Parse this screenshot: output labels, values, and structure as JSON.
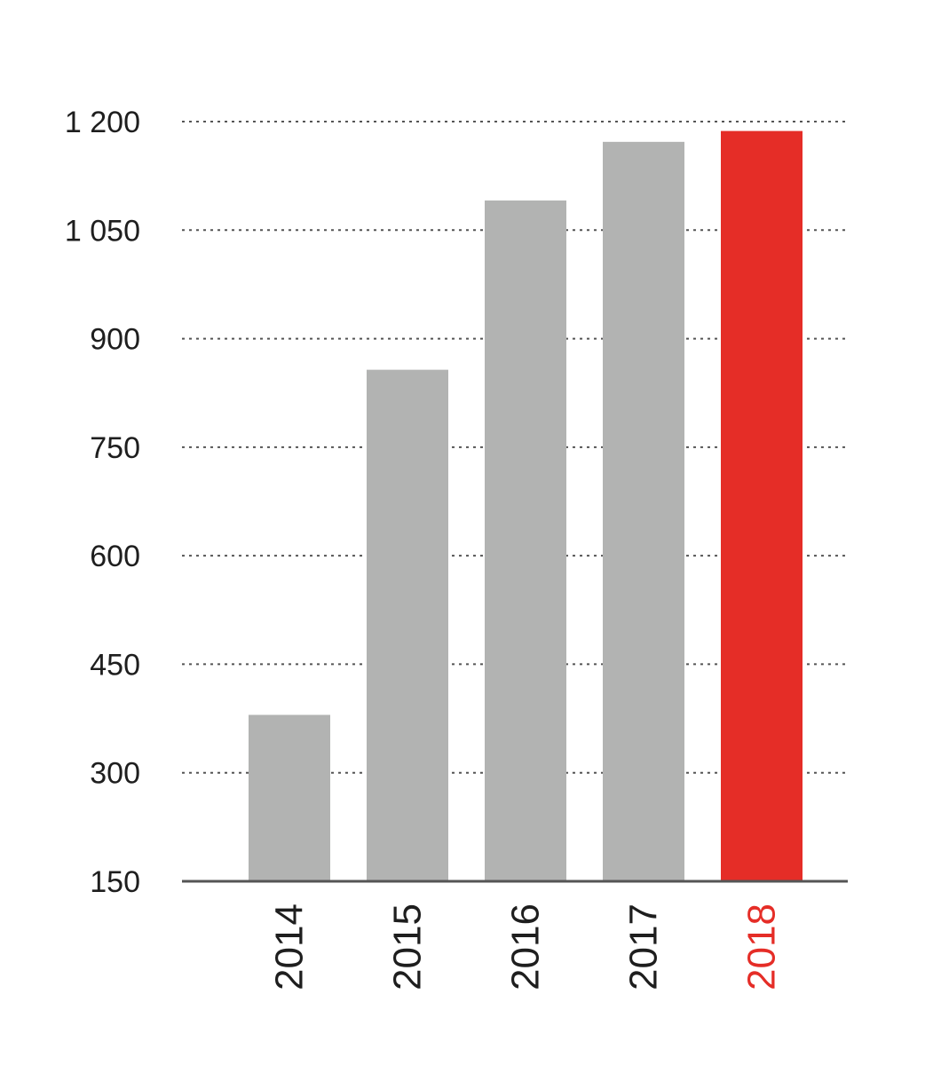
{
  "chart_data": {
    "type": "bar",
    "categories": [
      "2014",
      "2015",
      "2016",
      "2017",
      "2018"
    ],
    "values": [
      380,
      857,
      1091,
      1172,
      1187
    ],
    "ylim": [
      150,
      1200
    ],
    "yticks": [
      150,
      300,
      450,
      600,
      750,
      900,
      1050,
      1200
    ],
    "ytick_labels": [
      "150",
      "300",
      "450",
      "600",
      "750",
      "900",
      "1 050",
      "1 200"
    ],
    "grid": true,
    "grid_style": "dotted",
    "title": "",
    "xlabel": "",
    "ylabel": "",
    "colors": {
      "default_bar": "#b2b3b2",
      "highlight_bar": "#e52d27",
      "default_label": "#1e1e1e",
      "highlight_label": "#e52d27"
    },
    "highlight_category": "2018"
  }
}
